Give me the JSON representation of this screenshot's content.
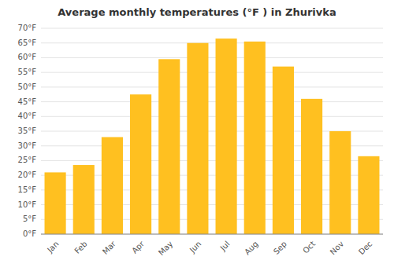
{
  "chart_data": {
    "type": "bar",
    "title": "Average monthly temperatures (°F ) in Zhurivka",
    "categories": [
      "Jan",
      "Feb",
      "Mar",
      "Apr",
      "May",
      "Jun",
      "Jul",
      "Aug",
      "Sep",
      "Oct",
      "Nov",
      "Dec"
    ],
    "values": [
      21,
      23.5,
      33,
      47.5,
      59.5,
      65,
      66.5,
      65.5,
      57,
      46,
      35,
      26.5
    ],
    "color": "#FFC020",
    "ylim": [
      0,
      70
    ],
    "yticks": [
      {
        "value": 0,
        "label": "0°F"
      },
      {
        "value": 5,
        "label": "5°F"
      },
      {
        "value": 10,
        "label": "10°F"
      },
      {
        "value": 15,
        "label": "15°F"
      },
      {
        "value": 20,
        "label": "20°F"
      },
      {
        "value": 25,
        "label": "25°F"
      },
      {
        "value": 30,
        "label": "30°F"
      },
      {
        "value": 35,
        "label": "35°F"
      },
      {
        "value": 40,
        "label": "40°F"
      },
      {
        "value": 45,
        "label": "45°F"
      },
      {
        "value": 50,
        "label": "50°F"
      },
      {
        "value": 55,
        "label": "55°F"
      },
      {
        "value": 60,
        "label": "60°F"
      },
      {
        "value": 65,
        "label": "65°F"
      },
      {
        "value": 70,
        "label": "70°F"
      }
    ],
    "grid": true
  }
}
